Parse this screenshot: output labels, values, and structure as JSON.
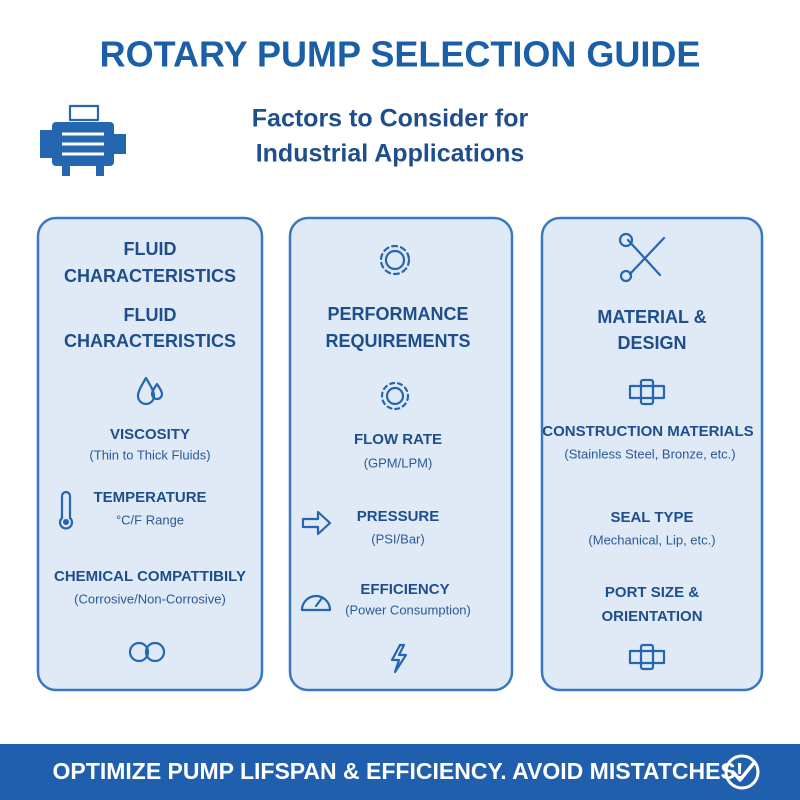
{
  "header": {
    "title": "ROTARY PUMP SELECTION GUIDE",
    "subtitle_lines": [
      "Factors to Consider for",
      "Industrial Applications"
    ]
  },
  "columns": [
    {
      "headings": [
        [
          "FLUID",
          "CHARACTERISTICS"
        ],
        [
          "FLUID",
          "CHARACTERISTICS"
        ]
      ],
      "items": [
        {
          "title": "VISCOSITY",
          "detail": "(Thin to Thick Fluids)"
        },
        {
          "title": "TEMPERATURE",
          "detail": "°C/F Range"
        },
        {
          "title": "CHEMICAL COMPATTIBILY",
          "detail": "(Corrosive/Non-Corrosive)"
        }
      ]
    },
    {
      "headings": [
        [
          "PERFORMANCE",
          "REQUIREMENTS"
        ]
      ],
      "items": [
        {
          "title": "FLOW RATE",
          "detail": "(GPM/LPM)"
        },
        {
          "title": "PRESSURE",
          "detail": "(PSI/Bar)"
        },
        {
          "title": "EFFICIENCY",
          "detail": "(Power Consumption)"
        }
      ]
    },
    {
      "headings": [
        [
          "MATERIAL &",
          "DESIGN"
        ]
      ],
      "items": [
        {
          "title": "CONSTRUCTION MATERIALS",
          "detail": "(Stainless Steel, Bronze, etc.)"
        },
        {
          "title": "SEAL TYPE",
          "detail": "(Mechanical, Lip, etc.)"
        },
        {
          "title": "PORT SIZE & ORIENTATION"
        }
      ]
    }
  ],
  "footer": "OPTIMIZE PUMP LIFSPAN & EFFICIENCY. AVOID MISTATCHES!"
}
